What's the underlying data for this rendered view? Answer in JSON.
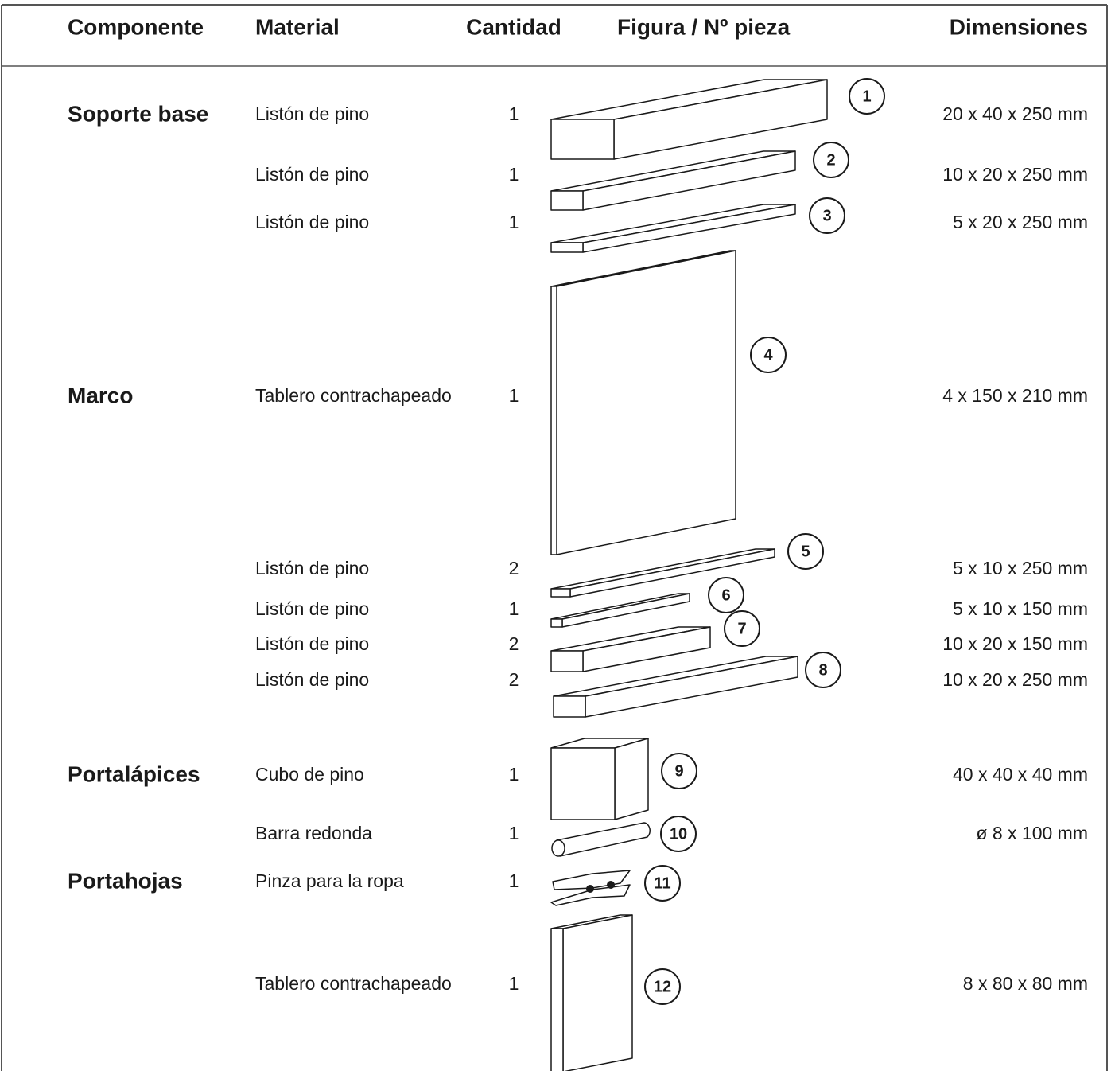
{
  "header": {
    "columns": [
      "Componente",
      "Material",
      "Cantidad",
      "Figura / Nº pieza",
      "Dimensiones"
    ]
  },
  "groups": [
    {
      "component": "Soporte base",
      "rows": [
        {
          "material": "Listón de pino",
          "quantity": "1",
          "piece": "1",
          "dimensions": "20 x 40 x 250 mm"
        },
        {
          "material": "Listón de pino",
          "quantity": "1",
          "piece": "2",
          "dimensions": "10 x 20 x 250 mm"
        },
        {
          "material": "Listón de pino",
          "quantity": "1",
          "piece": "3",
          "dimensions": "5 x 20 x 250 mm"
        }
      ]
    },
    {
      "component": "Marco",
      "rows": [
        {
          "material": "Tablero contrachapeado",
          "quantity": "1",
          "piece": "4",
          "dimensions": "4 x 150 x 210 mm"
        },
        {
          "material": "Listón de pino",
          "quantity": "2",
          "piece": "5",
          "dimensions": "5 x 10 x 250 mm"
        },
        {
          "material": "Listón de pino",
          "quantity": "1",
          "piece": "6",
          "dimensions": "5 x 10 x 150 mm"
        },
        {
          "material": "Listón de pino",
          "quantity": "2",
          "piece": "7",
          "dimensions": "10 x 20 x 150 mm"
        },
        {
          "material": "Listón de pino",
          "quantity": "2",
          "piece": "8",
          "dimensions": "10 x 20 x 250 mm"
        }
      ]
    },
    {
      "component": "Portalápices",
      "rows": [
        {
          "material": "Cubo de pino",
          "quantity": "1",
          "piece": "9",
          "dimensions": "40 x 40 x 40 mm"
        },
        {
          "material": "Barra redonda",
          "quantity": "1",
          "piece": "10",
          "dimensions": "ø 8 x 100 mm"
        }
      ]
    },
    {
      "component": "Portahojas",
      "rows": [
        {
          "material": "Pinza para la ropa",
          "quantity": "1",
          "piece": "11"
        },
        {
          "material": "Tablero contrachapeado",
          "quantity": "1",
          "piece": "12",
          "dimensions": "8 x 80 x 80 mm"
        }
      ]
    }
  ]
}
